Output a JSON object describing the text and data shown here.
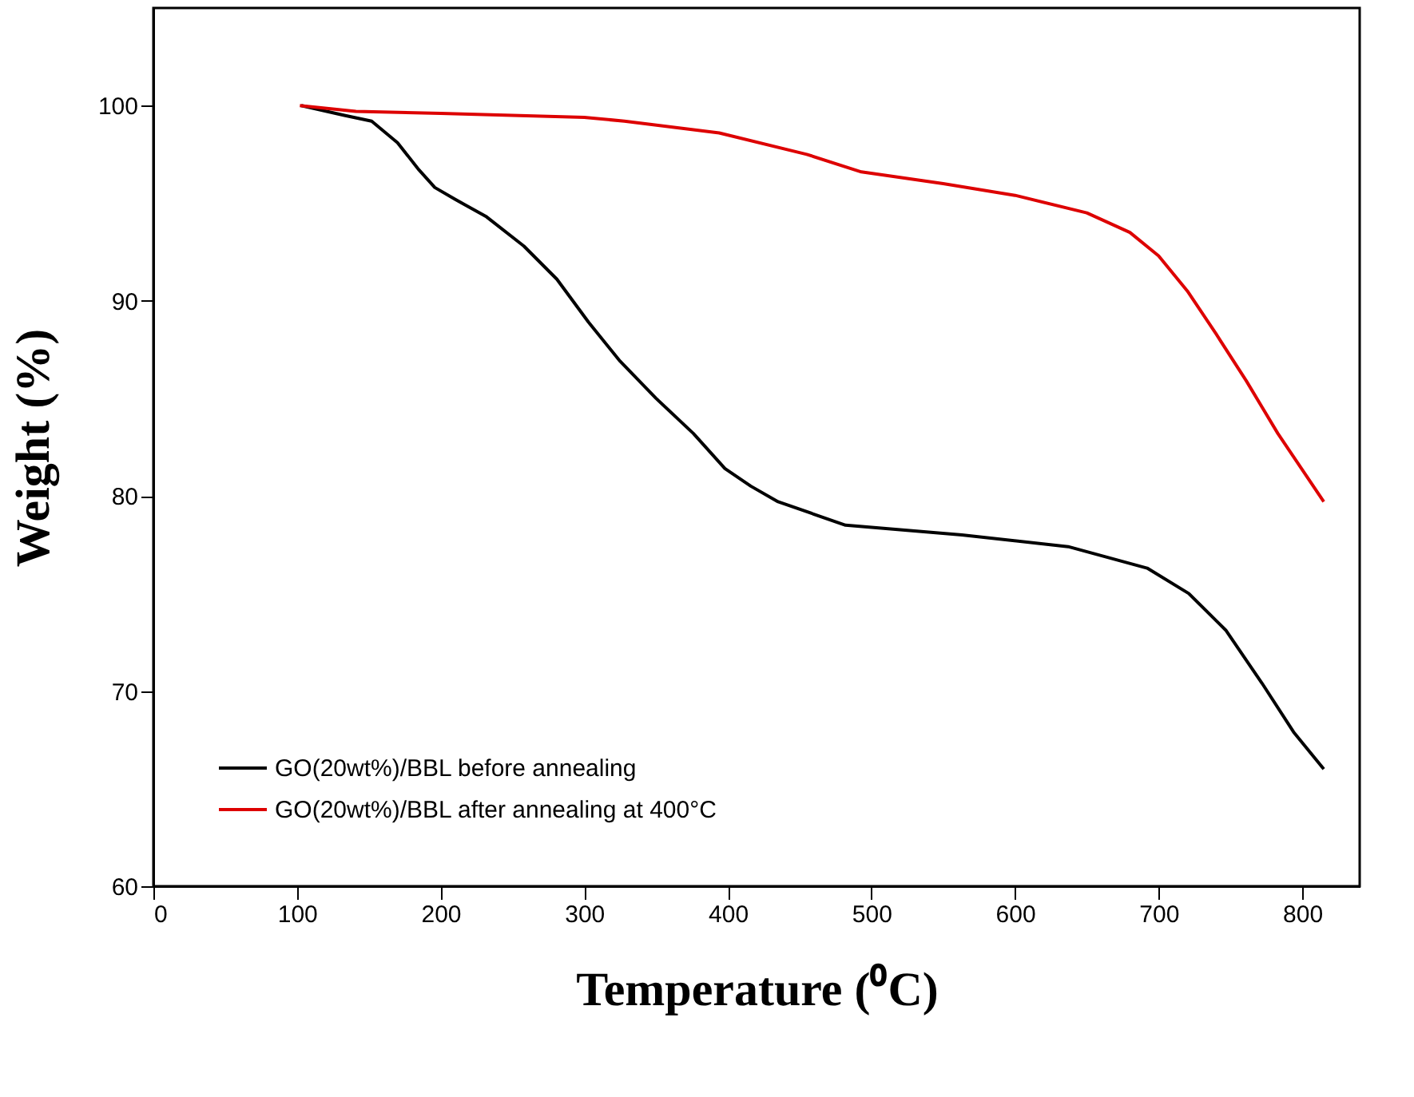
{
  "chart_data": {
    "type": "line",
    "xlabel": "Temperature (⁰C)",
    "ylabel": "Weight (%)",
    "xlim": [
      0,
      840
    ],
    "xticks": [
      0,
      100,
      200,
      300,
      400,
      500,
      600,
      700,
      800
    ],
    "ylim": [
      60,
      105
    ],
    "yticks": [
      60,
      70,
      80,
      90,
      100
    ],
    "grid": false,
    "legend": "bottom left",
    "marker": "none",
    "line_style": "solid",
    "series": [
      {
        "name": "GO(20wt%)/BBL before annealing",
        "color": "#000000",
        "x": [
          103,
          133,
          152,
          170,
          185,
          196,
          210,
          232,
          258,
          281,
          303,
          325,
          350,
          376,
          398,
          416,
          435,
          482,
          563,
          637,
          692,
          721,
          747,
          772,
          794,
          815
        ],
        "values": [
          100,
          99.5,
          99.2,
          98.1,
          96.7,
          95.8,
          95.2,
          94.3,
          92.8,
          91.1,
          88.9,
          86.9,
          85.0,
          83.2,
          81.4,
          80.5,
          79.7,
          78.5,
          78.0,
          77.4,
          76.3,
          75.0,
          73.1,
          70.4,
          67.9,
          66.0
        ]
      },
      {
        "name": "GO(20wt%)/BBL after annealing at 400°C",
        "color": "#dd0000",
        "x": [
          102,
          141,
          200,
          300,
          328,
          394,
          455,
          493,
          550,
          600,
          650,
          680,
          700,
          720,
          740,
          761,
          783,
          815
        ],
        "values": [
          100,
          99.7,
          99.6,
          99.4,
          99.2,
          98.6,
          97.5,
          96.6,
          96.0,
          95.4,
          94.5,
          93.5,
          92.3,
          90.5,
          88.3,
          85.9,
          83.2,
          79.7
        ]
      }
    ]
  }
}
